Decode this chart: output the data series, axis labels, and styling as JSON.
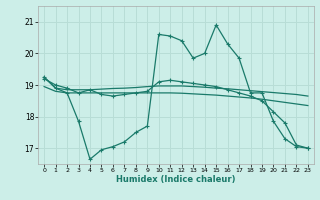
{
  "xlabel": "Humidex (Indice chaleur)",
  "bg_color": "#cceee8",
  "grid_color": "#b8ddd6",
  "line_color": "#1a7a6a",
  "xlim": [
    -0.5,
    23.5
  ],
  "ylim": [
    16.5,
    21.5
  ],
  "yticks": [
    17,
    18,
    19,
    20,
    21
  ],
  "xticks": [
    0,
    1,
    2,
    3,
    4,
    5,
    6,
    7,
    8,
    9,
    10,
    11,
    12,
    13,
    14,
    15,
    16,
    17,
    18,
    19,
    20,
    21,
    22,
    23
  ],
  "line_flat1_y": [
    19.25,
    18.9,
    18.85,
    18.85,
    18.85,
    18.87,
    18.89,
    18.9,
    18.92,
    18.95,
    18.97,
    18.97,
    18.97,
    18.95,
    18.93,
    18.9,
    18.88,
    18.85,
    18.82,
    18.79,
    18.76,
    18.73,
    18.7,
    18.65
  ],
  "line_flat2_y": [
    18.95,
    18.8,
    18.75,
    18.75,
    18.75,
    18.75,
    18.75,
    18.75,
    18.75,
    18.75,
    18.75,
    18.75,
    18.74,
    18.72,
    18.7,
    18.68,
    18.65,
    18.62,
    18.59,
    18.55,
    18.5,
    18.45,
    18.4,
    18.35
  ],
  "line_mid_y": [
    19.2,
    19.0,
    18.9,
    18.75,
    18.85,
    18.7,
    18.65,
    18.7,
    18.75,
    18.8,
    19.1,
    19.15,
    19.1,
    19.05,
    19.0,
    18.95,
    18.85,
    18.75,
    18.65,
    18.5,
    18.15,
    17.8,
    17.1,
    17.0
  ],
  "line_main_y": [
    19.25,
    18.9,
    18.75,
    17.85,
    16.65,
    16.95,
    17.05,
    17.2,
    17.5,
    17.7,
    20.6,
    20.55,
    20.4,
    19.85,
    20.0,
    20.9,
    20.3,
    19.85,
    18.75,
    18.75,
    17.85,
    17.3,
    17.05,
    17.0
  ]
}
